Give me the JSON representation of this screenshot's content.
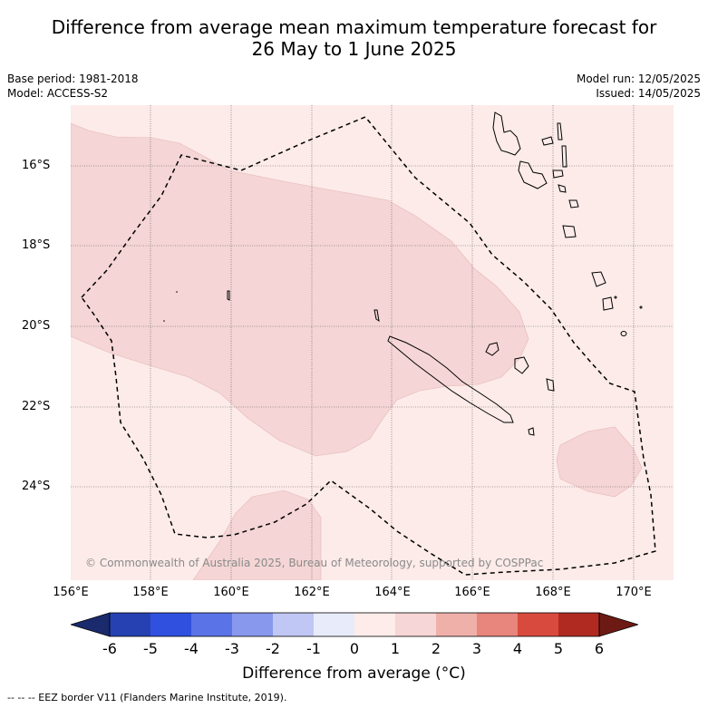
{
  "title": {
    "line1": "Difference from average mean maximum temperature forecast for",
    "line2": "26 May to 1 June 2025"
  },
  "meta": {
    "base_period": "Base period: 1981-2018",
    "model": "Model: ACCESS-S2",
    "model_run": "Model run: 12/05/2025",
    "issued": "Issued: 14/05/2025"
  },
  "axes": {
    "lat_labels": [
      "16°S",
      "18°S",
      "20°S",
      "22°S",
      "24°S"
    ],
    "lon_labels": [
      "156°E",
      "158°E",
      "160°E",
      "162°E",
      "164°E",
      "166°E",
      "168°E",
      "170°E"
    ]
  },
  "copyright": "© Commonwealth of Australia 2025, Bureau of Meteorology, supported by COSPPac",
  "colorbar": {
    "ticks": [
      "-6",
      "-5",
      "-4",
      "-3",
      "-2",
      "-1",
      "0",
      "1",
      "2",
      "3",
      "4",
      "5",
      "6"
    ],
    "colors": [
      "#1a2a6c",
      "#2541b2",
      "#3050e0",
      "#5a73e6",
      "#8898ec",
      "#c0c7f4",
      "#e8ebfa",
      "#fdece9",
      "#f6d6d6",
      "#f0b0aa",
      "#e8857c",
      "#d94a3e",
      "#b02a22",
      "#6e1a14"
    ],
    "label": "Difference from average (°C)"
  },
  "footnote": "--  --  -- EEZ border V11 (Flanders Marine Institute, 2019).",
  "colors": {
    "background_anomaly": "#fcebe9",
    "anomaly_1_2": "#f5d5d5",
    "grid": "#555555"
  }
}
